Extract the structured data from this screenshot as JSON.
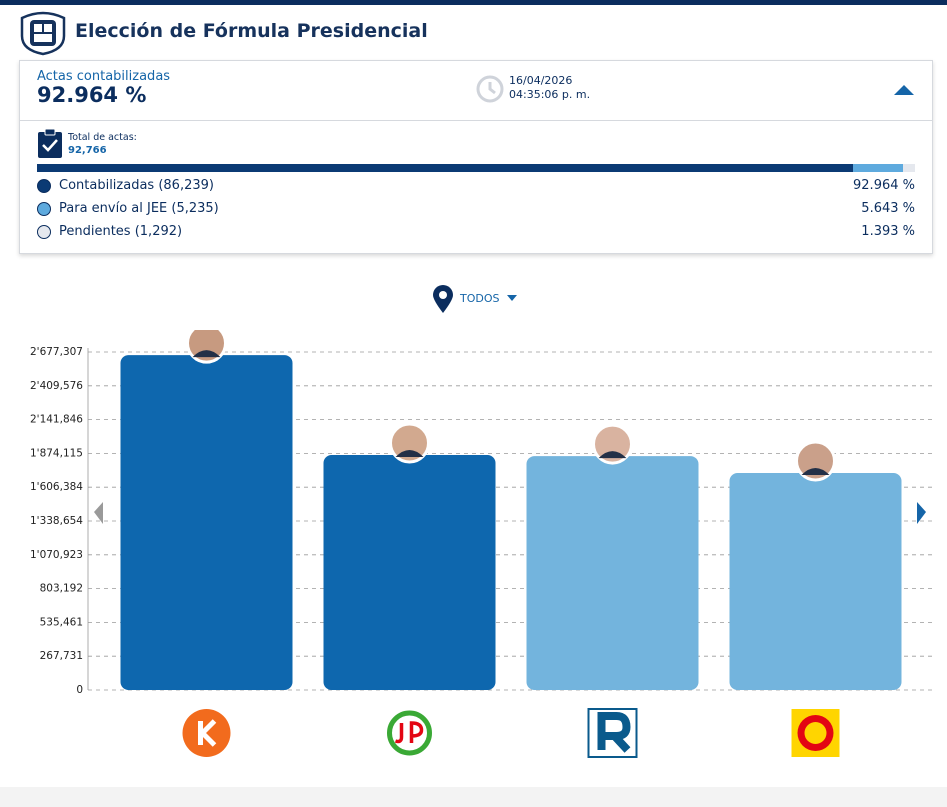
{
  "header": {
    "title": "Elección de Fórmula Presidencial"
  },
  "summary": {
    "label": "Actas contabilizadas",
    "value": "92.964 %",
    "date": "16/04/2026",
    "time": "04:35:06 p. m.",
    "total_label": "Total de actas:",
    "total": "92,766",
    "rows": [
      {
        "label": "Contabilizadas (86,239)",
        "value": 92.964,
        "value_label": "92.964 %",
        "color": "#0b3a74"
      },
      {
        "label": "Para envío al JEE (5,235)",
        "value": 5.643,
        "value_label": "5.643 %",
        "color": "#5eaade"
      },
      {
        "label": "Pendientes (1,292)",
        "value": 1.393,
        "value_label": "1.393 %",
        "color": "#e5e8ee"
      }
    ]
  },
  "filter": "TODOS",
  "chart_data": {
    "type": "bar",
    "categories": [
      null,
      null,
      null,
      null
    ],
    "values": [
      2653000,
      1861000,
      1853000,
      1719000
    ],
    "colors": [
      "#0e67ae",
      "#0e67ae",
      "#73b4dd",
      "#73b4dd"
    ],
    "ylim": [
      0,
      2677307
    ],
    "yticks": [
      0,
      {
        "value": 267731,
        "label": "267,731"
      },
      {
        "value": 535461,
        "label": "535,461"
      },
      {
        "value": 803192,
        "label": "803,192"
      },
      {
        "value": 1070923,
        "label": "1'070,923"
      },
      {
        "value": 1338654,
        "label": "1'338,654"
      },
      {
        "value": 1606384,
        "label": "1'606,384"
      },
      {
        "value": 1874115,
        "label": "1'874,115"
      },
      {
        "value": 2141846,
        "label": "2'141,846"
      },
      {
        "value": 2409576,
        "label": "2'409,576"
      },
      {
        "value": 2677307,
        "label": "2'677,307"
      }
    ],
    "grid": true
  }
}
